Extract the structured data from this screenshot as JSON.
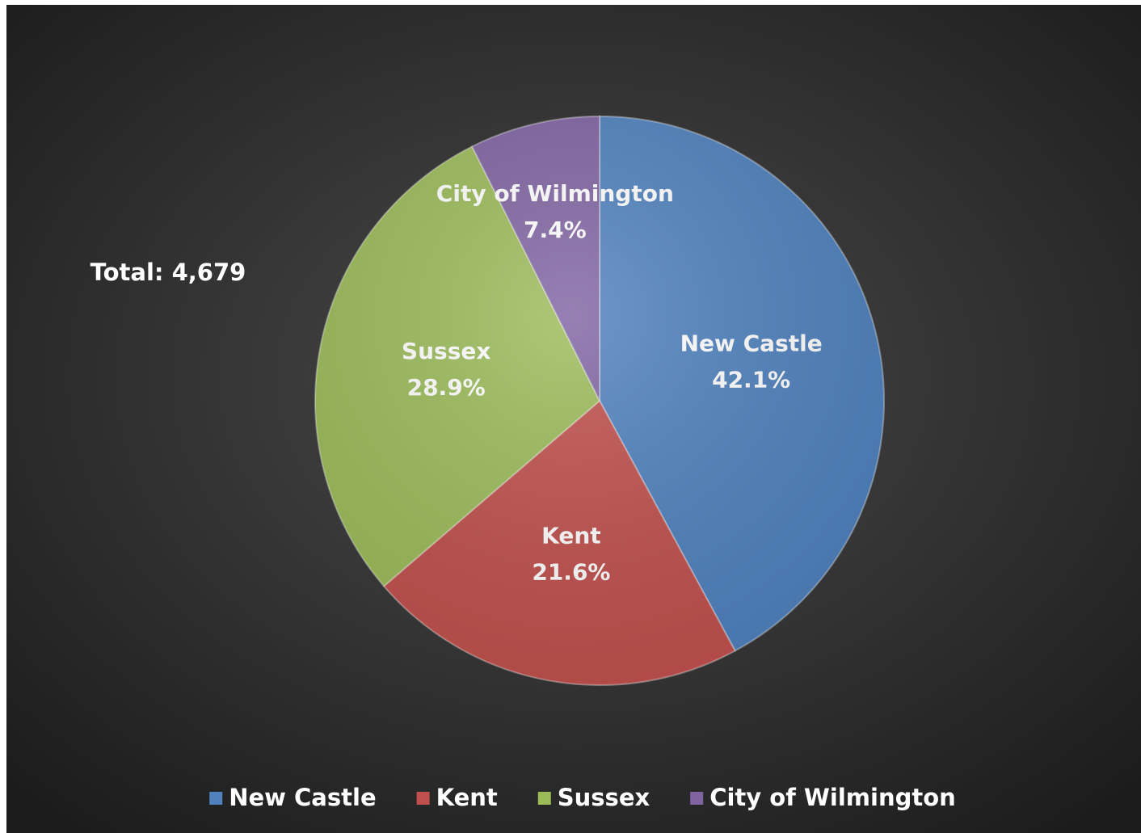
{
  "chart_data": {
    "type": "pie",
    "categories": [
      "New Castle",
      "Kent",
      "Sussex",
      "City of Wilmington"
    ],
    "values": [
      42.1,
      21.6,
      28.9,
      7.4
    ],
    "value_labels": [
      "42.1%",
      "21.6%",
      "28.9%",
      "7.4%"
    ],
    "colors": [
      "#4f81bd",
      "#c0504d",
      "#9bbb59",
      "#8064a2"
    ],
    "annotation": "Total: 4,679",
    "legend": "bottom"
  }
}
